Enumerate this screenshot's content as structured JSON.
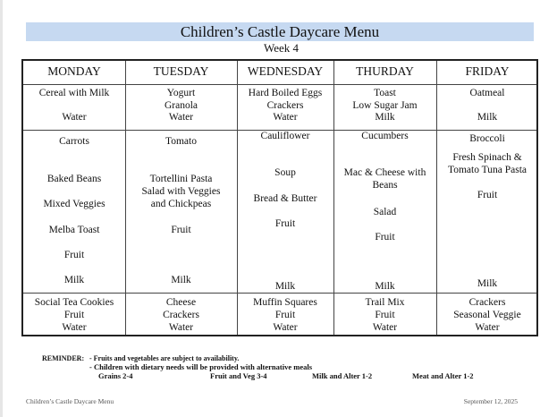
{
  "title": "Children’s Castle Daycare Menu",
  "week": "Week 4",
  "days": [
    "MONDAY",
    "TUESDAY",
    "WEDNESDAY",
    "THURDAY",
    "FRIDAY"
  ],
  "breakfast": [
    [
      "Cereal with Milk",
      "Water"
    ],
    [
      "Yogurt",
      "Granola",
      "Water"
    ],
    [
      "Hard Boiled Eggs",
      "Crackers",
      "Water"
    ],
    [
      "Toast",
      "Low Sugar Jam",
      "Milk"
    ],
    [
      "Oatmeal",
      "Milk"
    ]
  ],
  "lunch": [
    [
      "Carrots",
      "Baked Beans",
      "Mixed Veggies",
      "Melba Toast",
      "Fruit",
      "Milk"
    ],
    [
      "Tomato",
      "Tortellini Pasta",
      "Salad with Veggies",
      "and Chickpeas",
      "Fruit",
      "Milk"
    ],
    [
      "Cauliflower",
      "Soup",
      "Bread & Butter",
      "Fruit",
      "Milk"
    ],
    [
      "Cucumbers",
      "Mac & Cheese with",
      "Beans",
      "Salad",
      "Fruit",
      "Milk"
    ],
    [
      "Broccoli",
      "Fresh Spinach &",
      "Tomato Tuna Pasta",
      "Fruit",
      "Milk"
    ]
  ],
  "snack": [
    [
      "Social Tea Cookies",
      "Fruit",
      "Water"
    ],
    [
      "Cheese",
      "Crackers",
      "Water"
    ],
    [
      "Muffin Squares",
      "Fruit",
      "Water"
    ],
    [
      "Trail Mix",
      "Fruit",
      "Water"
    ],
    [
      "Crackers",
      "Seasonal Veggie",
      "Water"
    ]
  ],
  "reminder": {
    "label": "REMINDER:",
    "line1": "- Fruits and vegetables are subject to availability.",
    "line2": "- Children with dietary needs will be provided with alternative meals"
  },
  "groups": [
    "Grains 2-4",
    "Fruit and Veg 3-4",
    "Milk and Alter 1-2",
    "Meat and Alter 1-2"
  ],
  "footer": {
    "left": "Children’s Castle Daycare Menu",
    "right": "September 12, 2025"
  }
}
